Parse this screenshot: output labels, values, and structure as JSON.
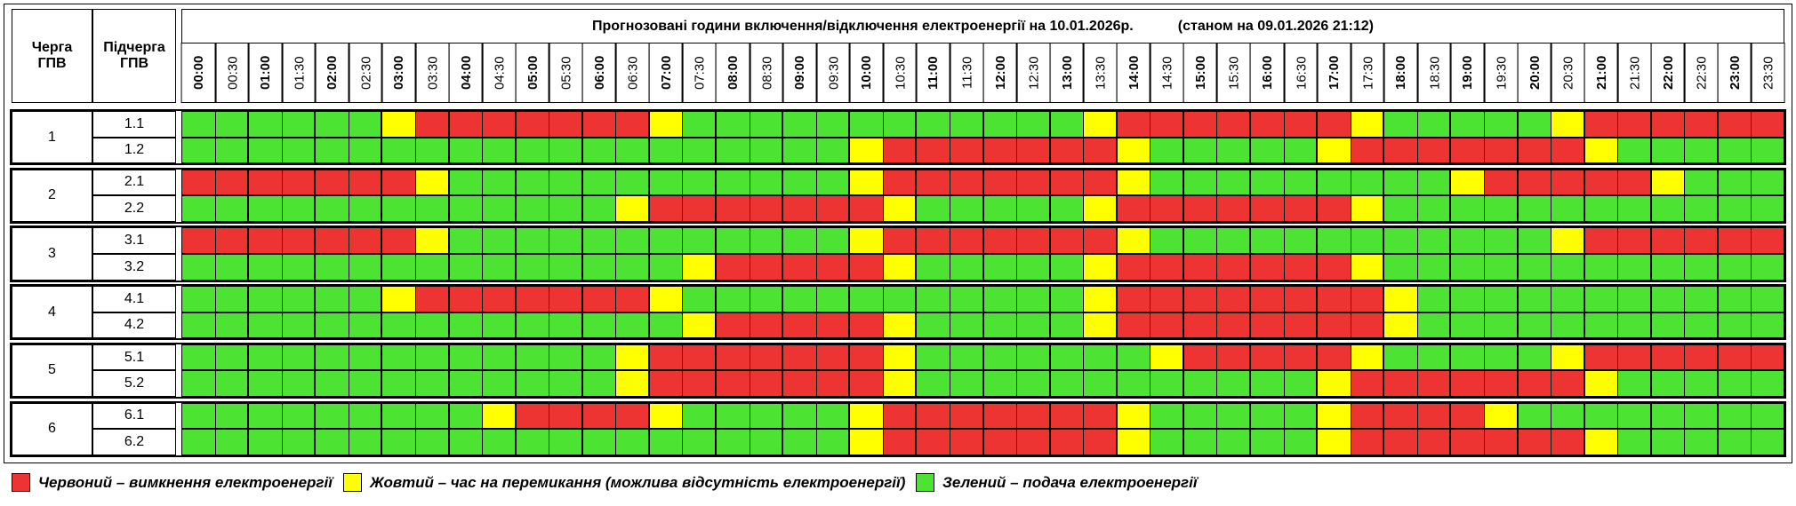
{
  "header": {
    "group_col": [
      "Черга",
      "ГПВ"
    ],
    "subgroup_col": [
      "Підчерга",
      "ГПВ"
    ],
    "title": "Прогнозовані години включення/відключення електроенергії на 10.01.2026р.",
    "status": "(станом на 09.01.2026 21:12)",
    "times": [
      "00:00",
      "00:30",
      "01:00",
      "01:30",
      "02:00",
      "02:30",
      "03:00",
      "03:30",
      "04:00",
      "04:30",
      "05:00",
      "05:30",
      "06:00",
      "06:30",
      "07:00",
      "07:30",
      "08:00",
      "08:30",
      "09:00",
      "09:30",
      "10:00",
      "10:30",
      "11:00",
      "11:30",
      "12:00",
      "12:30",
      "13:00",
      "13:30",
      "14:00",
      "14:30",
      "15:00",
      "15:30",
      "16:00",
      "16:30",
      "17:00",
      "17:30",
      "18:00",
      "18:30",
      "19:00",
      "19:30",
      "20:00",
      "20:30",
      "21:00",
      "21:30",
      "22:00",
      "22:30",
      "23:00",
      "23:30"
    ]
  },
  "legend": [
    {
      "code": "R",
      "color": "#ee3333",
      "label": "Червоний – вимкнення електроенергії"
    },
    {
      "code": "Y",
      "color": "#ffff00",
      "label": "Жовтий – час на перемикання (можлива відсутність електроенергії)"
    },
    {
      "code": "G",
      "color": "#4de333",
      "label": "Зелений – подача електроенергії"
    }
  ],
  "groups": [
    {
      "label": "1",
      "rows": [
        {
          "label": "1.1",
          "slots": "GGGGGGYRRRRRRRYGGGGGGGGGGGGYRRRRRRRYGGGGGYRRRRRR"
        },
        {
          "label": "1.2",
          "slots": "GGGGGGGGGGGGGGGGGGGGYRRRRRRRYGGGGGYRRRRRRRYGGGGG"
        }
      ]
    },
    {
      "label": "2",
      "rows": [
        {
          "label": "2.1",
          "slots": "RRRRRRRYGGGGGGGGGGGGYRRRRRRRYGGGGGGGGGYRRRRRYGGG"
        },
        {
          "label": "2.2",
          "slots": "GGGGGGGGGGGGGYRRRRRRRYGGGGGYRRRRRRRYGGGGGGGGGGGG"
        }
      ]
    },
    {
      "label": "3",
      "rows": [
        {
          "label": "3.1",
          "slots": "RRRRRRRYGGGGGGGGGGGGYRRRRRRRYGGGGGGGGGGGGYRRRRRR"
        },
        {
          "label": "3.2",
          "slots": "GGGGGGGGGGGGGGGYRRRRRYGGGGGYRRRRRRRYGGGGGGGGGGGG"
        }
      ]
    },
    {
      "label": "4",
      "rows": [
        {
          "label": "4.1",
          "slots": "GGGGGGYRRRRRRRYGGGGGGGGGGGGYRRRRRRRRYGGGGGGGGGGG"
        },
        {
          "label": "4.2",
          "slots": "GGGGGGGGGGGGGGGYRRRRRYGGGGGYRRRRRRRRYGGGGGGGGGGG"
        }
      ]
    },
    {
      "label": "5",
      "rows": [
        {
          "label": "5.1",
          "slots": "GGGGGGGGGGGGGYRRRRRRRYGGGGGGGYRRRRRYGGGGGYRRRRRR"
        },
        {
          "label": "5.2",
          "slots": "GGGGGGGGGGGGGYRRRRRRRYGGGGGGGGGGGGYRRRRRRRYGGGGG"
        }
      ]
    },
    {
      "label": "6",
      "rows": [
        {
          "label": "6.1",
          "slots": "GGGGGGGGGYRRRRYGGGGGYRRRRRRRYGGGGGYRRRRYGGGGGGGG"
        },
        {
          "label": "6.2",
          "slots": "GGGGGGGGGGGGGGGGGGGGYRRRRRRRYGGGGGYRRRRRRRYGGGGG"
        }
      ]
    }
  ]
}
